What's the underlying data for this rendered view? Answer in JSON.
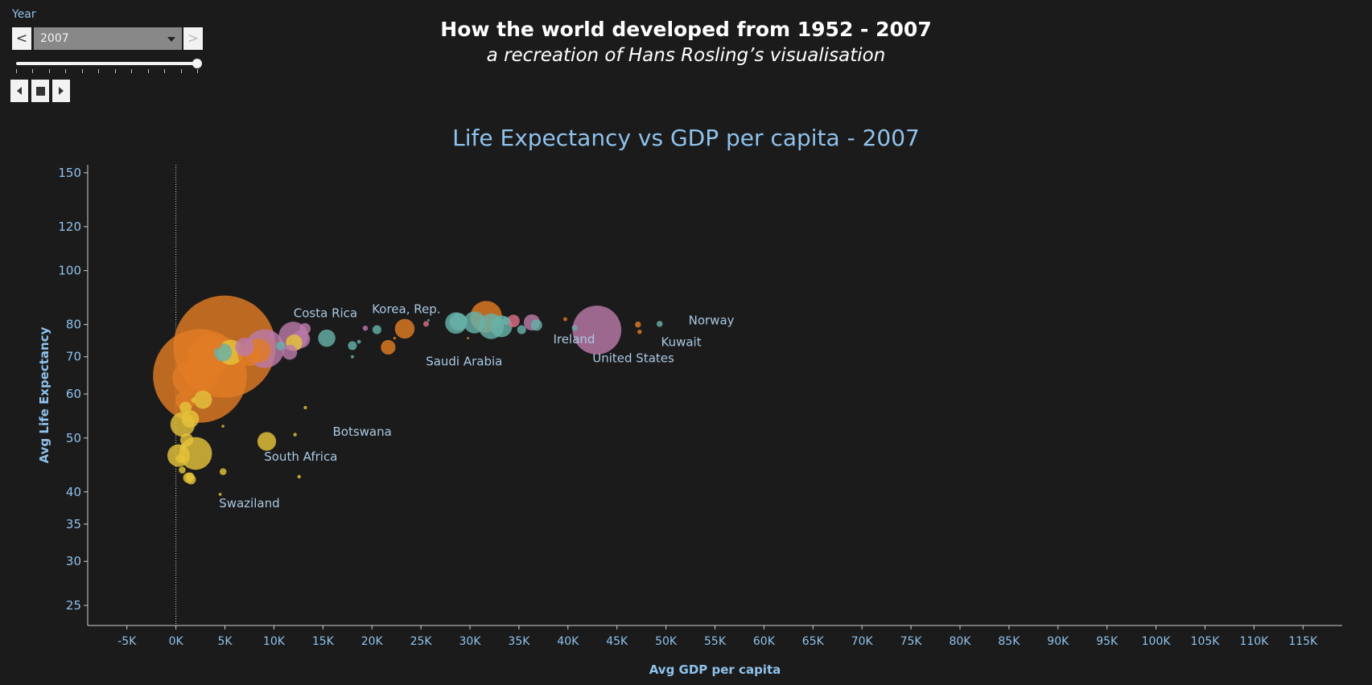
{
  "controls": {
    "year_label": "Year",
    "selected_year": "2007",
    "prev_glyph": "<",
    "next_glyph": ">",
    "prev_icon": "chevron-left-icon",
    "next_icon": "chevron-right-icon",
    "step_back_icon": "step-back-icon",
    "stop_icon": "stop-icon",
    "play_icon": "play-icon",
    "slider_value": 1.0,
    "slider_ticks": 12
  },
  "header": {
    "title": "How the world developed from 1952 - 2007",
    "subtitle": "a recreation of Hans Rosling’s visualisation"
  },
  "colors": {
    "background": "#1b1b1b",
    "axis_text": "#8fc2ec",
    "label_text": "#a9c8e4",
    "Asia": "#e07b24",
    "Europe": "#66b1a8",
    "Americas": "#b97aa8",
    "Africa": "#e4c23a",
    "Oceania": "#db6f84"
  },
  "chart_data": {
    "type": "scatter",
    "title": "Life Expectancy vs GDP per capita - 2007",
    "xlabel": "Avg GDP per capita",
    "ylabel": "Avg Life Expectancy",
    "xlim": [
      -9000,
      119000
    ],
    "ylim": [
      23,
      155
    ],
    "y_scale": "log",
    "x_ticks": [
      "-5K",
      "0K",
      "5K",
      "10K",
      "15K",
      "20K",
      "25K",
      "30K",
      "35K",
      "40K",
      "45K",
      "50K",
      "55K",
      "60K",
      "65K",
      "70K",
      "75K",
      "80K",
      "85K",
      "90K",
      "95K",
      "100K",
      "105K",
      "110K",
      "115K"
    ],
    "y_ticks": [
      25,
      30,
      35,
      40,
      50,
      60,
      70,
      80,
      100,
      120,
      150
    ],
    "zero_reference_line": true,
    "bubble_size": "population",
    "labels": [
      {
        "text": "Costa Rica",
        "x": 12000,
        "y": 82.5
      },
      {
        "text": "Korea, Rep.",
        "x": 20000,
        "y": 83.8
      },
      {
        "text": "Norway",
        "x": 52300,
        "y": 80
      },
      {
        "text": "Ireland",
        "x": 38500,
        "y": 74
      },
      {
        "text": "Kuwait",
        "x": 49500,
        "y": 73.2
      },
      {
        "text": "United States",
        "x": 42500,
        "y": 68.4
      },
      {
        "text": "Saudi Arabia",
        "x": 25500,
        "y": 67.5
      },
      {
        "text": "Botswana",
        "x": 16000,
        "y": 50.5
      },
      {
        "text": "South Africa",
        "x": 9000,
        "y": 45.5
      },
      {
        "text": "Swaziland",
        "x": 4400,
        "y": 37.5
      }
    ],
    "points": [
      {
        "x": 4959,
        "y": 73.0,
        "pop": 1318,
        "g": "Asia"
      },
      {
        "x": 2452,
        "y": 64.7,
        "pop": 1110,
        "g": "Asia"
      },
      {
        "x": 42952,
        "y": 78.2,
        "pop": 301,
        "g": "Americas"
      },
      {
        "x": 3541,
        "y": 70.7,
        "pop": 224,
        "g": "Asia"
      },
      {
        "x": 9066,
        "y": 72.4,
        "pop": 190,
        "g": "Americas"
      },
      {
        "x": 2606,
        "y": 65.5,
        "pop": 169,
        "g": "Asia"
      },
      {
        "x": 1391,
        "y": 64.1,
        "pop": 150,
        "g": "Asia"
      },
      {
        "x": 2014,
        "y": 46.9,
        "pop": 135,
        "g": "Africa"
      },
      {
        "x": 31656,
        "y": 82.6,
        "pop": 127,
        "g": "Asia"
      },
      {
        "x": 11977,
        "y": 76.2,
        "pop": 108,
        "g": "Americas"
      },
      {
        "x": 3190,
        "y": 71.7,
        "pop": 91,
        "g": "Asia"
      },
      {
        "x": 2452,
        "y": 70.7,
        "pop": 85,
        "g": "Asia"
      },
      {
        "x": 32170,
        "y": 79.4,
        "pop": 82,
        "g": "Europe"
      },
      {
        "x": 5581,
        "y": 71.3,
        "pop": 80,
        "g": "Africa"
      },
      {
        "x": 690,
        "y": 52.9,
        "pop": 76,
        "g": "Africa"
      },
      {
        "x": 8458,
        "y": 71.8,
        "pop": 71,
        "g": "Asia"
      },
      {
        "x": 7458,
        "y": 70.6,
        "pop": 65,
        "g": "Asia"
      },
      {
        "x": 30470,
        "y": 80.7,
        "pop": 61,
        "g": "Europe"
      },
      {
        "x": 33203,
        "y": 79.4,
        "pop": 60,
        "g": "Europe"
      },
      {
        "x": 28570,
        "y": 80.5,
        "pop": 58,
        "g": "Europe"
      },
      {
        "x": 277,
        "y": 46.5,
        "pop": 64,
        "g": "Africa"
      },
      {
        "x": 9270,
        "y": 49.3,
        "pop": 44,
        "g": "Africa"
      },
      {
        "x": 23348,
        "y": 78.6,
        "pop": 49,
        "g": "Asia"
      },
      {
        "x": 944,
        "y": 58.4,
        "pop": 47,
        "g": "Asia"
      },
      {
        "x": 28821,
        "y": 80.9,
        "pop": 40,
        "g": "Europe"
      },
      {
        "x": 12779,
        "y": 75.3,
        "pop": 40,
        "g": "Americas"
      },
      {
        "x": 7007,
        "y": 72.9,
        "pop": 44,
        "g": "Americas"
      },
      {
        "x": 1463,
        "y": 54.1,
        "pop": 39,
        "g": "Africa"
      },
      {
        "x": 4797,
        "y": 71.3,
        "pop": 41,
        "g": "Europe"
      },
      {
        "x": 2749,
        "y": 58.6,
        "pop": 42,
        "g": "Africa"
      },
      {
        "x": 15390,
        "y": 75.6,
        "pop": 38,
        "g": "Europe"
      },
      {
        "x": 36319,
        "y": 80.7,
        "pop": 33,
        "g": "Americas"
      },
      {
        "x": 11605,
        "y": 71.3,
        "pop": 28,
        "g": "Americas"
      },
      {
        "x": 12057,
        "y": 74.2,
        "pop": 34,
        "g": "Africa"
      },
      {
        "x": 34435,
        "y": 81.2,
        "pop": 20,
        "g": "Oceania"
      },
      {
        "x": 21655,
        "y": 72.8,
        "pop": 27,
        "g": "Asia"
      },
      {
        "x": 1544,
        "y": 42.1,
        "pop": 12,
        "g": "Africa"
      },
      {
        "x": 2082,
        "y": 63.8,
        "pop": 11,
        "g": "Asia"
      },
      {
        "x": 4173,
        "y": 74.0,
        "pop": 16,
        "g": "Asia"
      },
      {
        "x": 1107,
        "y": 49.6,
        "pop": 22,
        "g": "Africa"
      },
      {
        "x": 986,
        "y": 56.7,
        "pop": 18,
        "g": "Africa"
      },
      {
        "x": 13172,
        "y": 78.6,
        "pop": 16,
        "g": "Americas"
      },
      {
        "x": 36798,
        "y": 79.8,
        "pop": 16,
        "g": "Europe"
      },
      {
        "x": 33692,
        "y": 81.2,
        "pop": 8,
        "g": "Europe"
      },
      {
        "x": 35278,
        "y": 78.3,
        "pop": 10,
        "g": "Europe"
      },
      {
        "x": 10681,
        "y": 73.2,
        "pop": 10,
        "g": "Europe"
      },
      {
        "x": 4811,
        "y": 43.5,
        "pop": 6,
        "g": "Africa"
      },
      {
        "x": 1271,
        "y": 42.4,
        "pop": 14,
        "g": "Africa"
      },
      {
        "x": 469,
        "y": 45.9,
        "pop": 10,
        "g": "Africa"
      },
      {
        "x": 759,
        "y": 48.2,
        "pop": 5,
        "g": "Africa"
      },
      {
        "x": 641,
        "y": 43.8,
        "pop": 6,
        "g": "Africa"
      },
      {
        "x": 1441,
        "y": 42.6,
        "pop": 9,
        "g": "Africa"
      },
      {
        "x": 9786,
        "y": 76.4,
        "pop": 4,
        "g": "Americas"
      },
      {
        "x": 18008,
        "y": 73.3,
        "pop": 10,
        "g": "Europe"
      },
      {
        "x": 20509,
        "y": 78.3,
        "pop": 10,
        "g": "Europe"
      },
      {
        "x": 22316,
        "y": 75.6,
        "pop": 1,
        "g": "Asia"
      },
      {
        "x": 47307,
        "y": 77.6,
        "pop": 2.5,
        "g": "Asia"
      },
      {
        "x": 49357,
        "y": 80.2,
        "pop": 4.6,
        "g": "Europe"
      },
      {
        "x": 40676,
        "y": 78.9,
        "pop": 4.1,
        "g": "Europe"
      },
      {
        "x": 47143,
        "y": 80.0,
        "pop": 4.5,
        "g": "Asia"
      },
      {
        "x": 25523,
        "y": 80.2,
        "pop": 4.1,
        "g": "Oceania"
      },
      {
        "x": 39725,
        "y": 81.8,
        "pop": 2.0,
        "g": "Asia"
      },
      {
        "x": 19328,
        "y": 78.8,
        "pop": 3.4,
        "g": "Americas"
      },
      {
        "x": 12570,
        "y": 42.6,
        "pop": 1.6,
        "g": "Africa"
      },
      {
        "x": 4513,
        "y": 39.6,
        "pop": 1.1,
        "g": "Africa"
      },
      {
        "x": 13206,
        "y": 56.7,
        "pop": 1.5,
        "g": "Africa"
      },
      {
        "x": 12154,
        "y": 50.7,
        "pop": 1.6,
        "g": "Africa"
      },
      {
        "x": 18009,
        "y": 70.0,
        "pop": 1.3,
        "g": "Europe"
      },
      {
        "x": 29796,
        "y": 75.6,
        "pop": 0.7,
        "g": "Asia"
      },
      {
        "x": 25768,
        "y": 81.4,
        "pop": 0.3,
        "g": "Europe"
      },
      {
        "x": 4797,
        "y": 52.5,
        "pop": 1.0,
        "g": "Africa"
      },
      {
        "x": 18678,
        "y": 74.5,
        "pop": 1.9,
        "g": "Europe"
      },
      {
        "x": 40676,
        "y": 79.5,
        "pop": 0.8,
        "g": "Americas"
      },
      {
        "x": 1803,
        "y": 58.5,
        "pop": 3.0,
        "g": "Africa"
      }
    ]
  }
}
